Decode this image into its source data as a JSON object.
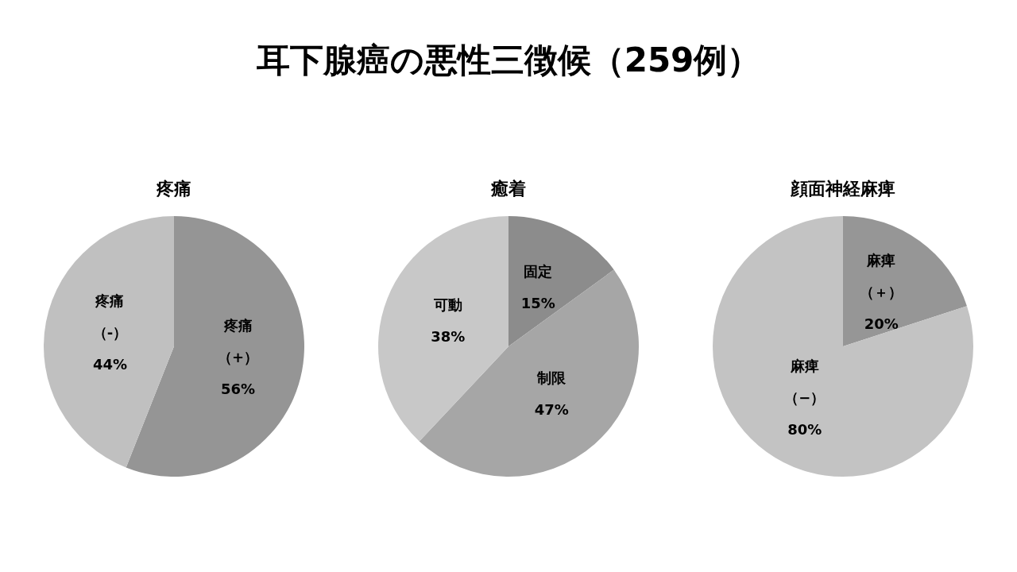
{
  "chart_data": [
    {
      "type": "other",
      "title": "耳下腺癌の悪性三徴候（259例）"
    },
    {
      "type": "pie",
      "title": "疼痛",
      "categories": [
        "疼痛（+）",
        "疼痛（-）"
      ],
      "values": [
        56,
        44
      ],
      "value_labels": [
        "56%",
        "44%"
      ],
      "colors": [
        "#959595",
        "#c0c0c0"
      ],
      "legend": false
    },
    {
      "type": "pie",
      "title": "癒着",
      "categories": [
        "固定",
        "制限",
        "可動"
      ],
      "values": [
        15,
        47,
        38
      ],
      "value_labels": [
        "15%",
        "47%",
        "38%"
      ],
      "colors": [
        "#8c8c8c",
        "#a6a6a6",
        "#c8c8c8"
      ],
      "legend": false
    },
    {
      "type": "pie",
      "title": "顔面神経麻痺",
      "categories": [
        "麻痺（＋）",
        "麻痺（−）"
      ],
      "values": [
        20,
        80
      ],
      "value_labels": [
        "20%",
        "80%"
      ],
      "colors": [
        "#969696",
        "#c3c3c3"
      ],
      "legend": false
    }
  ]
}
